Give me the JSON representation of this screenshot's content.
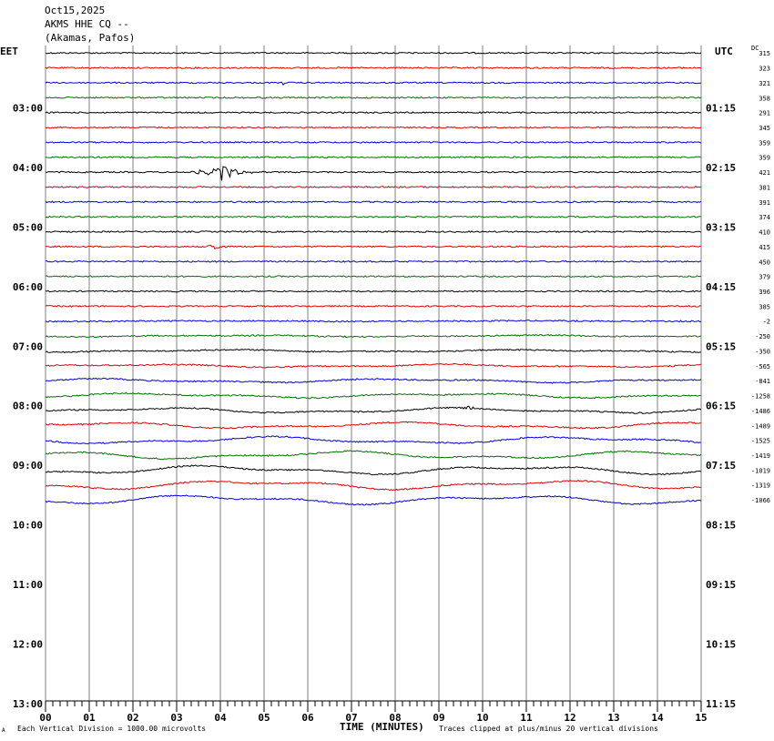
{
  "header": {
    "date": "Oct15,2025",
    "station": "AKMS HHE CQ --",
    "location": "(Akamas, Pafos)"
  },
  "tz_left": "EET",
  "tz_right": "UTC",
  "dc_label": "DC",
  "footer": {
    "scale_note": "Each Vertical Division = 1000.00 microvolts",
    "xlabel": "TIME (MINUTES)",
    "clip_note": "Traces clipped at plus/minus 20 vertical divisions",
    "corner_mark": "A"
  },
  "colors": {
    "cycle": [
      "#000000",
      "#e00000",
      "#0000e0",
      "#007000"
    ],
    "grid": "#808080"
  },
  "chart_data": {
    "type": "line",
    "xlabel": "TIME (MINUTES)",
    "x_ticks": [
      "00",
      "01",
      "02",
      "03",
      "04",
      "05",
      "06",
      "07",
      "08",
      "09",
      "10",
      "11",
      "12",
      "13",
      "14",
      "15"
    ],
    "xlim": [
      0,
      15
    ],
    "row_minutes": 15,
    "row_count_axis": 44,
    "left_hour_labels": [
      "03:00",
      "04:00",
      "05:00",
      "06:00",
      "07:00",
      "08:00",
      "09:00",
      "10:00",
      "11:00",
      "12:00",
      "13:00"
    ],
    "right_hour_labels": [
      "01:15",
      "02:15",
      "03:15",
      "04:15",
      "05:15",
      "06:15",
      "07:15",
      "08:15",
      "09:15",
      "10:15",
      "11:15"
    ],
    "dc_offsets": [
      "315",
      "323",
      "321",
      "358",
      "291",
      "345",
      "359",
      "359",
      "421",
      "381",
      "391",
      "374",
      "410",
      "415",
      "450",
      "379",
      "396",
      "385",
      "-2",
      "-250",
      "-350",
      "-565",
      "-841",
      "-1258",
      "-1486",
      "-1489",
      "-1525",
      "-1419",
      "-1019",
      "-1319",
      "-1066"
    ],
    "events": [
      {
        "trace_index": 2,
        "minute": 5.4,
        "kind": "small spike"
      },
      {
        "trace_index": 8,
        "minute": 4.0,
        "kind": "local earthquake"
      },
      {
        "trace_index": 13,
        "minute": 3.9,
        "kind": "small event"
      },
      {
        "trace_index": 24,
        "minute": 9.7,
        "kind": "small event"
      }
    ]
  }
}
